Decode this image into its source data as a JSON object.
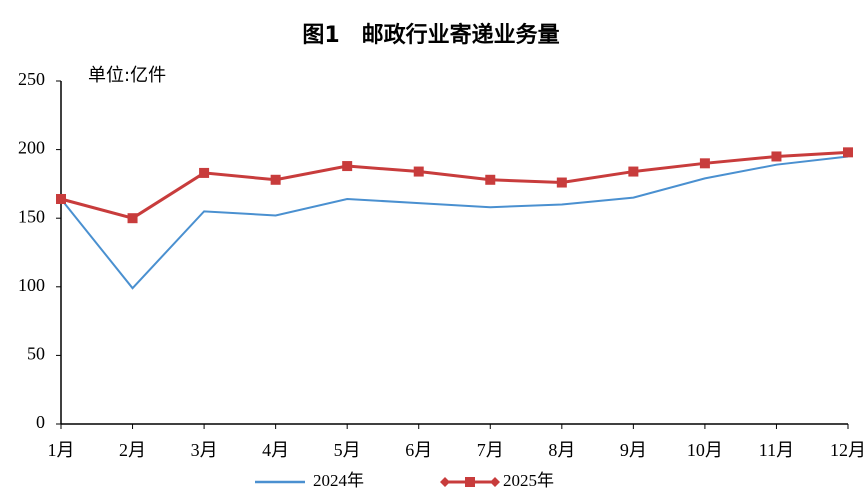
{
  "chart_data": {
    "type": "line",
    "title": "图1　邮政行业寄递业务量",
    "y_label": "单位:亿件",
    "categories": [
      "1月",
      "2月",
      "3月",
      "4月",
      "5月",
      "6月",
      "7月",
      "8月",
      "9月",
      "10月",
      "11月",
      "12月"
    ],
    "series": [
      {
        "name": "2024年",
        "color": "#4a90d0",
        "marker": "none",
        "values": [
          164,
          99,
          155,
          152,
          164,
          161,
          158,
          160,
          165,
          179,
          189,
          195
        ]
      },
      {
        "name": "2025年",
        "color": "#c83c3c",
        "marker": "square",
        "values": [
          164,
          150,
          183,
          178,
          188,
          184,
          178,
          176,
          184,
          190,
          195,
          198
        ]
      }
    ],
    "ylim": [
      0,
      250
    ],
    "yticks": [
      0,
      50,
      100,
      150,
      200,
      250
    ],
    "grid": false,
    "legend": "bottom"
  }
}
